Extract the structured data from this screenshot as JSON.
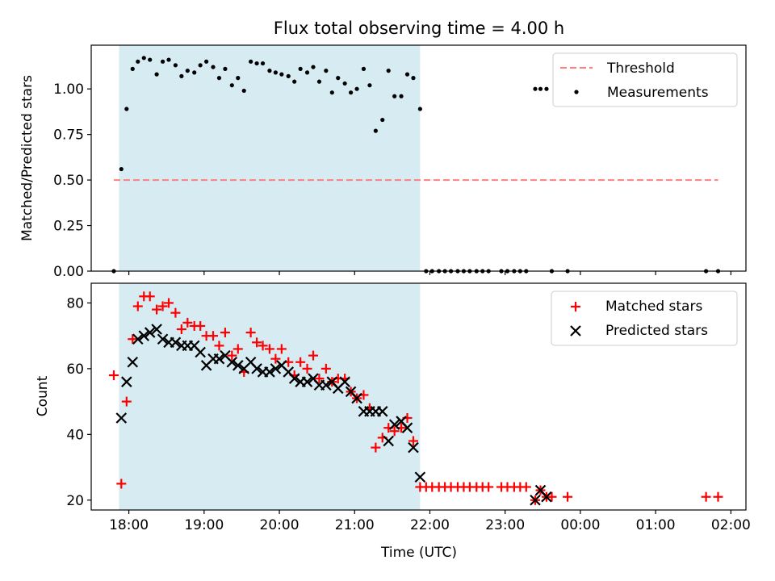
{
  "chart_data": [
    {
      "type": "scatter",
      "title": "Flux total observing time = 4.00 h",
      "xlabel": "",
      "ylabel": "Matched/Predicted stars",
      "xlim": [
        17.5,
        26.2
      ],
      "ylim": [
        0,
        1.24
      ],
      "yticks": [
        0.0,
        0.25,
        0.5,
        0.75,
        1.0
      ],
      "ytick_labels": [
        "0.00",
        "0.25",
        "0.50",
        "0.75",
        "1.00"
      ],
      "shaded_span": [
        17.87,
        21.87
      ],
      "threshold": {
        "name": "Threshold",
        "value": 0.5,
        "x_range": [
          17.8,
          25.83
        ],
        "color": "#ff7f7f"
      },
      "legend": {
        "placement": "top-right",
        "entries": [
          "Threshold",
          "Measurements"
        ]
      },
      "series": [
        {
          "name": "Measurements",
          "color": "#000000",
          "x": [
            17.8,
            17.9,
            17.97,
            18.05,
            18.12,
            18.2,
            18.28,
            18.37,
            18.45,
            18.53,
            18.62,
            18.7,
            18.78,
            18.87,
            18.95,
            19.03,
            19.12,
            19.2,
            19.28,
            19.37,
            19.45,
            19.53,
            19.62,
            19.7,
            19.78,
            19.87,
            19.95,
            20.03,
            20.12,
            20.2,
            20.28,
            20.37,
            20.45,
            20.53,
            20.62,
            20.7,
            20.78,
            20.87,
            20.95,
            21.03,
            21.12,
            21.2,
            21.28,
            21.37,
            21.45,
            21.53,
            21.62,
            21.7,
            21.78,
            21.87,
            21.95,
            22.03,
            22.12,
            22.2,
            22.28,
            22.37,
            22.45,
            22.53,
            22.62,
            22.7,
            22.78,
            22.95,
            23.03,
            23.12,
            23.2,
            23.28,
            23.4,
            23.47,
            23.55,
            23.62,
            23.83,
            25.67,
            25.83
          ],
          "y": [
            0.0,
            0.56,
            0.89,
            1.11,
            1.15,
            1.17,
            1.16,
            1.08,
            1.15,
            1.16,
            1.13,
            1.07,
            1.1,
            1.09,
            1.13,
            1.15,
            1.12,
            1.06,
            1.11,
            1.02,
            1.06,
            0.99,
            1.15,
            1.14,
            1.14,
            1.1,
            1.09,
            1.08,
            1.07,
            1.04,
            1.11,
            1.09,
            1.12,
            1.04,
            1.1,
            0.98,
            1.06,
            1.03,
            0.98,
            1.0,
            1.11,
            1.02,
            0.77,
            0.83,
            1.1,
            0.96,
            0.96,
            1.08,
            1.06,
            0.89,
            0.0,
            0.0,
            0.0,
            0.0,
            0.0,
            0.0,
            0.0,
            0.0,
            0.0,
            0.0,
            0.0,
            0.0,
            0.0,
            0.0,
            0.0,
            0.0,
            1.0,
            1.0,
            1.0,
            0.0,
            0.0,
            0.0,
            0.0
          ]
        }
      ]
    },
    {
      "type": "scatter",
      "xlabel": "Time (UTC)",
      "ylabel": "Count",
      "xlim": [
        17.5,
        26.2
      ],
      "ylim": [
        17,
        86
      ],
      "yticks": [
        20,
        40,
        60,
        80
      ],
      "ytick_labels": [
        "20",
        "40",
        "60",
        "80"
      ],
      "xticks": [
        18,
        19,
        20,
        21,
        22,
        23,
        24,
        25,
        26
      ],
      "xtick_labels": [
        "18:00",
        "19:00",
        "20:00",
        "21:00",
        "22:00",
        "23:00",
        "00:00",
        "01:00",
        "02:00"
      ],
      "shaded_span": [
        17.87,
        21.87
      ],
      "legend": {
        "placement": "top-right",
        "entries": [
          "Matched stars",
          "Predicted stars"
        ]
      },
      "series": [
        {
          "name": "Matched stars",
          "marker": "plus",
          "color": "#ff0000",
          "x": [
            17.8,
            17.9,
            17.97,
            18.05,
            18.12,
            18.2,
            18.28,
            18.37,
            18.45,
            18.53,
            18.62,
            18.7,
            18.78,
            18.87,
            18.95,
            19.03,
            19.12,
            19.2,
            19.28,
            19.37,
            19.45,
            19.53,
            19.62,
            19.7,
            19.78,
            19.87,
            19.95,
            20.03,
            20.12,
            20.2,
            20.28,
            20.37,
            20.45,
            20.53,
            20.62,
            20.7,
            20.78,
            20.87,
            20.95,
            21.03,
            21.12,
            21.2,
            21.28,
            21.37,
            21.45,
            21.53,
            21.62,
            21.7,
            21.78,
            21.87,
            21.95,
            22.03,
            22.12,
            22.2,
            22.28,
            22.37,
            22.45,
            22.53,
            22.62,
            22.7,
            22.78,
            22.95,
            23.03,
            23.12,
            23.2,
            23.28,
            23.4,
            23.47,
            23.55,
            23.62,
            23.83,
            25.67,
            25.83
          ],
          "y": [
            58,
            25,
            50,
            69,
            79,
            82,
            82,
            78,
            79,
            80,
            77,
            72,
            74,
            73,
            73,
            70,
            70,
            67,
            71,
            64,
            66,
            59,
            71,
            68,
            67,
            66,
            63,
            66,
            62,
            58,
            62,
            60,
            64,
            57,
            60,
            56,
            57,
            57,
            53,
            51,
            52,
            48,
            36,
            39,
            42,
            41,
            42,
            45,
            38,
            24,
            24,
            24,
            24,
            24,
            24,
            24,
            24,
            24,
            24,
            24,
            24,
            24,
            24,
            24,
            24,
            24,
            20,
            23,
            21,
            21,
            21,
            21,
            21
          ]
        },
        {
          "name": "Predicted stars",
          "marker": "x",
          "color": "#000000",
          "x": [
            17.9,
            17.97,
            18.05,
            18.12,
            18.2,
            18.28,
            18.37,
            18.45,
            18.53,
            18.62,
            18.7,
            18.78,
            18.87,
            18.95,
            19.03,
            19.12,
            19.2,
            19.28,
            19.37,
            19.45,
            19.53,
            19.62,
            19.7,
            19.78,
            19.87,
            19.95,
            20.03,
            20.12,
            20.2,
            20.28,
            20.37,
            20.45,
            20.53,
            20.62,
            20.7,
            20.78,
            20.87,
            20.95,
            21.03,
            21.12,
            21.2,
            21.28,
            21.37,
            21.45,
            21.53,
            21.62,
            21.7,
            21.78,
            21.87,
            23.4,
            23.47,
            23.55
          ],
          "y": [
            45,
            56,
            62,
            69,
            70,
            71,
            72,
            69,
            68,
            68,
            67,
            67,
            67,
            65,
            61,
            63,
            63,
            64,
            62,
            61,
            60,
            62,
            60,
            59,
            59,
            60,
            61,
            59,
            57,
            56,
            56,
            57,
            55,
            55,
            56,
            54,
            56,
            53,
            51,
            47,
            47,
            47,
            47,
            38,
            43,
            44,
            42,
            36,
            27,
            20,
            23,
            21
          ]
        }
      ]
    }
  ]
}
